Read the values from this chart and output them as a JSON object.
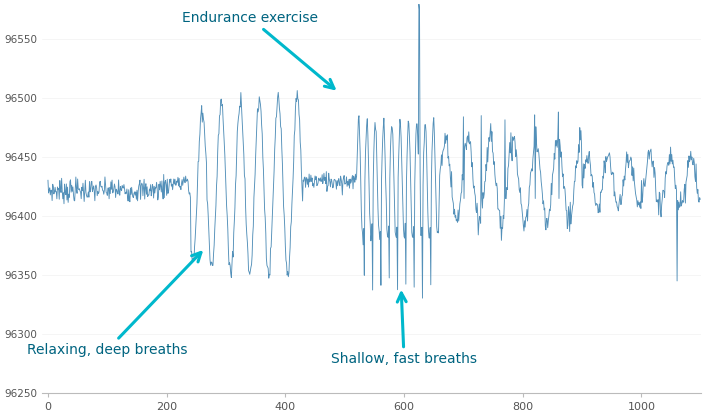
{
  "ylim": [
    96250,
    96580
  ],
  "xlim": [
    -10,
    1100
  ],
  "yticks": [
    96250,
    96300,
    96350,
    96400,
    96450,
    96500,
    96550
  ],
  "xticks": [
    0,
    200,
    400,
    600,
    800,
    1000
  ],
  "line_color": "#4a8ab5",
  "annotation_color": "#00b8cc",
  "annotation_text_color": "#006480",
  "background_color": "#ffffff",
  "seed": 7,
  "base_level": 96430,
  "figsize": [
    7.05,
    4.16
  ],
  "dpi": 100
}
